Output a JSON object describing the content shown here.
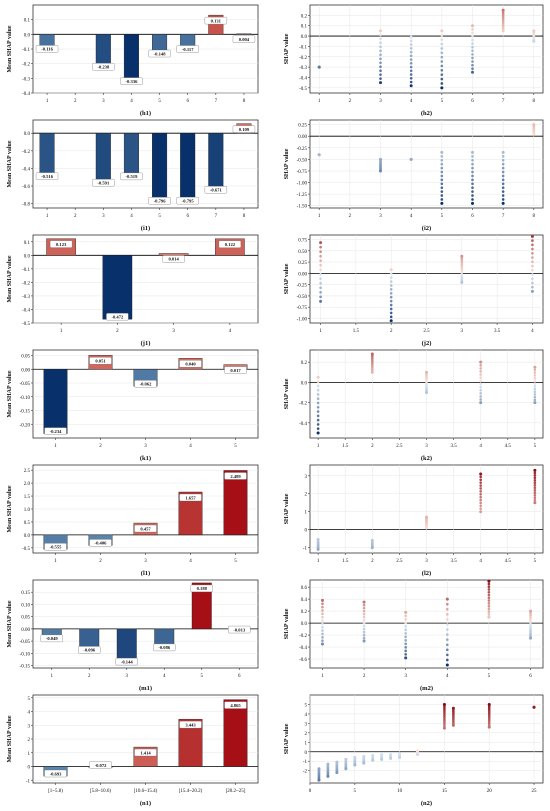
{
  "chart_data": [
    {
      "id": "h1",
      "type": "bar",
      "caption": "(h1)",
      "ylabel": "Mean SHAP value",
      "categories": [
        "1",
        "2",
        "3",
        "4",
        "5",
        "6",
        "7",
        "8"
      ],
      "values": [
        -0.116,
        0,
        -0.238,
        -0.336,
        -0.148,
        -0.117,
        0.131,
        0.004
      ],
      "labels": [
        "-0.116",
        "",
        "-0.238",
        "-0.336",
        "-0.148",
        "-0.117",
        "0.131",
        "0.004"
      ],
      "ylim": [
        -0.4,
        0.2
      ],
      "yticks": [
        -0.4,
        -0.3,
        -0.2,
        -0.1,
        0.0,
        0.1
      ],
      "yticklabels": [
        "-0.4",
        "-0.3",
        "-0.2",
        "-0.1",
        "0.0",
        "0.1"
      ]
    },
    {
      "id": "h2",
      "type": "scatter",
      "caption": "(h2)",
      "ylabel": "SHAP value",
      "xticks": [
        1,
        2,
        3,
        4,
        5,
        6,
        7,
        8
      ],
      "xticklabels": [
        "1",
        "2",
        "3",
        "4",
        "5",
        "6",
        "7",
        "8"
      ],
      "xlim": [
        0.7,
        8.3
      ],
      "ylim": [
        -0.55,
        0.3
      ],
      "yticks": [
        -0.5,
        -0.4,
        -0.3,
        -0.2,
        -0.1,
        0.0,
        0.1,
        0.2
      ],
      "yticklabels": [
        "-0.5",
        "-0.4",
        "-0.3",
        "-0.2",
        "-0.1",
        "0.0",
        "0.1",
        "0.2"
      ],
      "columns": [
        [
          1,
          -0.3,
          -0.3
        ],
        [
          3,
          -0.45,
          0.05
        ],
        [
          4,
          -0.48,
          -0.01
        ],
        [
          5,
          -0.5,
          0.05
        ],
        [
          6,
          -0.35,
          0.1
        ],
        [
          7,
          0.05,
          0.25
        ],
        [
          8,
          -0.05,
          0.05
        ]
      ]
    },
    {
      "id": "i1",
      "type": "bar",
      "caption": "(i1)",
      "ylabel": "Mean SHAP value",
      "categories": [
        "1",
        "2",
        "3",
        "4",
        "5",
        "6",
        "7",
        "8"
      ],
      "values": [
        -0.516,
        0,
        -0.591,
        -0.519,
        -0.796,
        -0.795,
        -0.671,
        0.109
      ],
      "labels": [
        "-0.516",
        "",
        "-0.591",
        "-0.519",
        "-0.796",
        "-0.795",
        "-0.671",
        "0.109"
      ],
      "ylim": [
        -0.85,
        0.15
      ],
      "yticks": [
        -0.8,
        -0.6,
        -0.4,
        -0.2,
        0.0
      ],
      "yticklabels": [
        "-0.8",
        "-0.6",
        "-0.4",
        "-0.2",
        "0.0"
      ]
    },
    {
      "id": "i2",
      "type": "scatter",
      "caption": "(i2)",
      "ylabel": "SHAP value",
      "xticks": [
        1,
        2,
        3,
        4,
        5,
        6,
        7,
        8
      ],
      "xticklabels": [
        "1",
        "2",
        "3",
        "4",
        "5",
        "6",
        "7",
        "8"
      ],
      "xlim": [
        0.7,
        8.3
      ],
      "ylim": [
        -1.55,
        0.35
      ],
      "yticks": [
        -1.5,
        -1.25,
        -1.0,
        -0.75,
        -0.5,
        -0.25,
        0.0,
        0.25
      ],
      "yticklabels": [
        "-1.50",
        "-1.25",
        "-1.00",
        "-0.75",
        "-0.50",
        "-0.25",
        "0.00",
        "0.25"
      ],
      "columns": [
        [
          1,
          -0.4,
          -0.4
        ],
        [
          3,
          -0.75,
          -0.5
        ],
        [
          4,
          -0.5,
          -0.5
        ],
        [
          5,
          -1.45,
          -0.35
        ],
        [
          6,
          -1.45,
          -0.35
        ],
        [
          7,
          -1.45,
          -0.35
        ],
        [
          8,
          0.05,
          0.25
        ]
      ]
    },
    {
      "id": "j1",
      "type": "bar",
      "caption": "(j1)",
      "ylabel": "Mean SHAP value",
      "categories": [
        "1",
        "2",
        "3",
        "4"
      ],
      "values": [
        0.123,
        -0.472,
        0.014,
        0.122
      ],
      "labels": [
        "0.123",
        "-0.472",
        "0.014",
        "0.122"
      ],
      "ylim": [
        -0.5,
        0.15
      ],
      "yticks": [
        -0.5,
        -0.4,
        -0.3,
        -0.2,
        -0.1,
        0.0,
        0.1
      ],
      "yticklabels": [
        "-0.5",
        "-0.4",
        "-0.3",
        "-0.2",
        "-0.1",
        "0.0",
        "0.1"
      ]
    },
    {
      "id": "j2",
      "type": "scatter",
      "caption": "(j2)",
      "ylabel": "SHAP value",
      "xticks": [
        1,
        1.5,
        2,
        2.5,
        3,
        3.5,
        4
      ],
      "xticklabels": [
        "1",
        "1.5",
        "2",
        "2.5",
        "3",
        "3.5",
        "4"
      ],
      "xlim": [
        0.85,
        4.15
      ],
      "ylim": [
        -1.1,
        0.85
      ],
      "yticks": [
        -1.0,
        -0.75,
        -0.5,
        -0.25,
        0.0,
        0.25,
        0.5,
        0.75
      ],
      "yticklabels": [
        "-1.00",
        "-0.75",
        "-0.50",
        "-0.25",
        "0.00",
        "0.25",
        "0.50",
        "0.75"
      ],
      "columns": [
        [
          1,
          -0.62,
          0.68
        ],
        [
          2,
          -1.05,
          0.08
        ],
        [
          3,
          -0.2,
          0.38
        ],
        [
          4,
          -0.4,
          0.82
        ]
      ]
    },
    {
      "id": "k1",
      "type": "bar",
      "caption": "(k1)",
      "ylabel": "Mean SHAP value",
      "categories": [
        "1",
        "2",
        "3",
        "4",
        "5"
      ],
      "values": [
        -0.234,
        0.051,
        -0.062,
        0.04,
        0.017
      ],
      "labels": [
        "-0.234",
        "0.051",
        "-0.062",
        "0.040",
        "0.017"
      ],
      "ylim": [
        -0.25,
        0.07
      ],
      "yticks": [
        -0.2,
        -0.15,
        -0.1,
        -0.05,
        0.0,
        0.05
      ],
      "yticklabels": [
        "-0.20",
        "-0.15",
        "-0.10",
        "-0.05",
        "0.00",
        "0.05"
      ]
    },
    {
      "id": "k2",
      "type": "scatter",
      "caption": "(k2)",
      "ylabel": "SHAP value",
      "xticks": [
        1,
        1.5,
        2,
        2.5,
        3,
        3.5,
        4,
        4.5,
        5
      ],
      "xticklabels": [
        "1",
        "1.5",
        "2",
        "2.5",
        "3",
        "3.5",
        "4",
        "4.5",
        "5"
      ],
      "xlim": [
        0.85,
        5.15
      ],
      "ylim": [
        -0.55,
        0.32
      ],
      "yticks": [
        -0.4,
        -0.2,
        0.0,
        0.2
      ],
      "yticklabels": [
        "-0.4",
        "-0.2",
        "0.0",
        "0.2"
      ],
      "columns": [
        [
          1,
          -0.5,
          0.05
        ],
        [
          2,
          0.1,
          0.28
        ],
        [
          3,
          -0.1,
          0.1
        ],
        [
          4,
          -0.2,
          0.2
        ],
        [
          5,
          -0.2,
          0.15
        ]
      ]
    },
    {
      "id": "l1",
      "type": "bar",
      "caption": "(l1)",
      "ylabel": "Mean SHAP value",
      "categories": [
        "1",
        "2",
        "3",
        "4",
        "5"
      ],
      "values": [
        -0.555,
        -0.406,
        0.457,
        1.657,
        2.489
      ],
      "labels": [
        "-0.555",
        "-0.406",
        "0.457",
        "1.657",
        "2.489"
      ],
      "ylim": [
        -0.7,
        2.7
      ],
      "yticks": [
        -0.5,
        0.0,
        0.5,
        1.0,
        1.5,
        2.0,
        2.5
      ],
      "yticklabels": [
        "-0.5",
        "0.0",
        "0.5",
        "1.0",
        "1.5",
        "2.0",
        "2.5"
      ]
    },
    {
      "id": "l2",
      "type": "scatter",
      "caption": "(l2)",
      "ylabel": "SHAP value",
      "xticks": [
        1,
        1.5,
        2,
        2.5,
        3,
        3.5,
        4,
        4.5,
        5
      ],
      "xticklabels": [
        "1",
        "1.5",
        "2",
        "2.5",
        "3",
        "3.5",
        "4",
        "4.5",
        "5"
      ],
      "xlim": [
        0.85,
        5.15
      ],
      "ylim": [
        -1.3,
        3.6
      ],
      "yticks": [
        -1,
        0,
        1,
        2,
        3
      ],
      "yticklabels": [
        "-1",
        "0",
        "1",
        "2",
        "3"
      ],
      "columns": [
        [
          1,
          -1.1,
          -0.55
        ],
        [
          2,
          -1.0,
          -0.6
        ],
        [
          3,
          0.1,
          0.7
        ],
        [
          4,
          1.0,
          3.1
        ],
        [
          5,
          1.5,
          3.3
        ]
      ]
    },
    {
      "id": "m1",
      "type": "bar",
      "caption": "(m1)",
      "ylabel": "Mean SHAP value",
      "categories": [
        "1",
        "2",
        "3",
        "4",
        "5",
        "6"
      ],
      "values": [
        -0.049,
        -0.096,
        -0.144,
        -0.086,
        0.188,
        -0.013
      ],
      "labels": [
        "-0.049",
        "-0.096",
        "-0.144",
        "-0.086",
        "0.188",
        "-0.013"
      ],
      "ylim": [
        -0.16,
        0.2
      ],
      "yticks": [
        -0.15,
        -0.1,
        -0.05,
        0.0,
        0.05,
        0.1,
        0.15
      ],
      "yticklabels": [
        "-0.15",
        "-0.10",
        "-0.05",
        "0.00",
        "0.05",
        "0.10",
        "0.15"
      ]
    },
    {
      "id": "m2",
      "type": "scatter",
      "caption": "(m2)",
      "ylabel": "SHAP value",
      "xticks": [
        1,
        2,
        3,
        4,
        5,
        6
      ],
      "xticklabels": [
        "1",
        "2",
        "3",
        "4",
        "5",
        "6"
      ],
      "xlim": [
        0.7,
        6.3
      ],
      "ylim": [
        -0.75,
        0.72
      ],
      "yticks": [
        -0.6,
        -0.4,
        -0.2,
        0.0,
        0.2,
        0.4,
        0.6
      ],
      "yticklabels": [
        "-0.6",
        "-0.4",
        "-0.2",
        "0.0",
        "0.2",
        "0.4",
        "0.6"
      ],
      "columns": [
        [
          1,
          -0.35,
          0.38
        ],
        [
          2,
          -0.3,
          0.35
        ],
        [
          3,
          -0.58,
          0.18
        ],
        [
          4,
          -0.7,
          0.4
        ],
        [
          5,
          0.1,
          0.7
        ],
        [
          6,
          -0.25,
          0.2
        ]
      ]
    },
    {
      "id": "n1",
      "type": "bar",
      "caption": "(n1)",
      "ylabel": "Mean SHAP value",
      "categories": [
        "[1~5.8)",
        "[5.8~10.6)",
        "[10.6~15.4)",
        "[15.4~20.2)",
        "[20.2~25]"
      ],
      "values": [
        -0.693,
        -0.072,
        1.414,
        3.443,
        4.865
      ],
      "labels": [
        "-0.693",
        "-0.072",
        "1.414",
        "3.443",
        "4.865"
      ],
      "ylim": [
        -1.2,
        5.2
      ],
      "yticks": [
        -1,
        0,
        1,
        2,
        3,
        4,
        5
      ],
      "yticklabels": [
        "-1",
        "0",
        "1",
        "2",
        "3",
        "4",
        "5"
      ]
    },
    {
      "id": "n2",
      "type": "scatter",
      "caption": "(n2)",
      "ylabel": "SHAP value",
      "xticks": [
        0,
        5,
        10,
        15,
        20,
        25
      ],
      "xticklabels": [
        "0",
        "5",
        "10",
        "15",
        "20",
        "25"
      ],
      "xlim": [
        0,
        26
      ],
      "ylim": [
        -3.3,
        6.0
      ],
      "yticks": [
        -2,
        -1,
        0,
        1,
        2,
        3,
        4,
        5
      ],
      "yticklabels": [
        "-2",
        "-1",
        "0",
        "1",
        "2",
        "3",
        "4",
        "5"
      ],
      "columns": [
        [
          1,
          -3.0,
          -1.8
        ],
        [
          2,
          -2.6,
          -1.3
        ],
        [
          3,
          -2.2,
          -1.1
        ],
        [
          4,
          -1.8,
          -0.8
        ],
        [
          5,
          -1.4,
          -0.6
        ],
        [
          6,
          -1.2,
          -0.5
        ],
        [
          7,
          -0.9,
          -0.4
        ],
        [
          8,
          -0.8,
          -0.3
        ],
        [
          9,
          -0.7,
          -0.3
        ],
        [
          10,
          -0.6,
          -0.2
        ],
        [
          12,
          -0.3,
          0.1
        ],
        [
          15,
          2.5,
          5.0
        ],
        [
          16,
          2.8,
          4.6
        ],
        [
          20,
          2.6,
          5.0
        ],
        [
          25,
          4.7,
          4.7
        ]
      ]
    }
  ]
}
